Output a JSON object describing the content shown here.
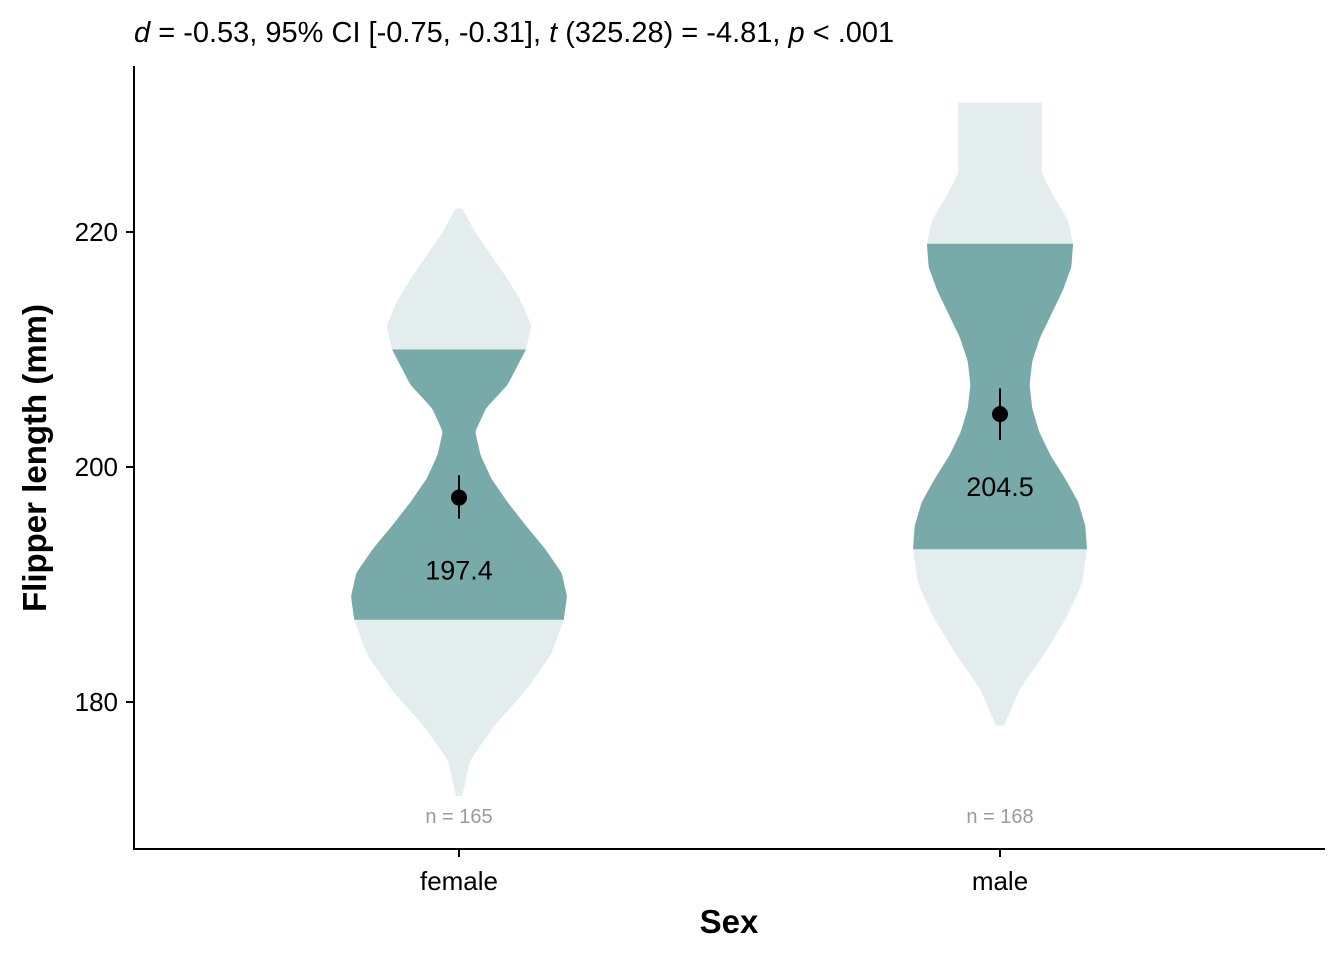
{
  "chart_data": {
    "type": "violin",
    "subtitle": {
      "d_symbol": "d",
      "d_text": " = -0.53, 95% CI [-0.75, -0.31], ",
      "t_symbol": "t",
      "t_text": " (325.28) = -4.81, ",
      "p_symbol": "p",
      "p_text": " < .001"
    },
    "xlabel": "Sex",
    "ylabel": "Flipper length (mm)",
    "categories": [
      "female",
      "male"
    ],
    "ylim": [
      167.5,
      234.5
    ],
    "yticks": [
      180,
      200,
      220
    ],
    "ytick_labels": [
      "180",
      "200",
      "220"
    ],
    "grid": false,
    "legend": "none",
    "colors": {
      "outer": "#e3eded",
      "inner": "#79aaaa",
      "point": "#000000",
      "n_text": "#9a9a9a"
    },
    "groups": [
      {
        "name": "female",
        "n_label": "n = 165",
        "mean": 197.4,
        "mean_label": "197.4",
        "ci": [
          195.6,
          199.3
        ],
        "iqr": [
          187.0,
          210.0
        ],
        "min": 172,
        "max": 222,
        "density_y": [
          172,
          175,
          178,
          181,
          184,
          187,
          189,
          191,
          193,
          195,
          197,
          199,
          201,
          203,
          205,
          207,
          210,
          212,
          214,
          216,
          218,
          220,
          222
        ],
        "density_w": [
          0.03,
          0.1,
          0.33,
          0.62,
          0.85,
          0.97,
          1.0,
          0.95,
          0.8,
          0.62,
          0.45,
          0.3,
          0.2,
          0.15,
          0.25,
          0.45,
          0.62,
          0.67,
          0.58,
          0.45,
          0.3,
          0.15,
          0.03
        ]
      },
      {
        "name": "male",
        "n_label": "n = 168",
        "mean": 204.5,
        "mean_label": "204.5",
        "ci": [
          202.3,
          206.7
        ],
        "iqr": [
          193.0,
          219.0
        ],
        "min": 178,
        "max": 231,
        "density_y": [
          178,
          181,
          184,
          187,
          190,
          193,
          195,
          197,
          199,
          201,
          203,
          205,
          207,
          209,
          211,
          213,
          215,
          217,
          219,
          221,
          223,
          225,
          227,
          229,
          231
        ],
        "density_w": [
          0.05,
          0.22,
          0.5,
          0.75,
          0.94,
          1.0,
          0.98,
          0.9,
          0.75,
          0.58,
          0.45,
          0.37,
          0.34,
          0.37,
          0.46,
          0.59,
          0.72,
          0.82,
          0.84,
          0.78,
          0.62,
          0.48,
          0.48,
          0.48,
          0.48
        ]
      }
    ]
  }
}
